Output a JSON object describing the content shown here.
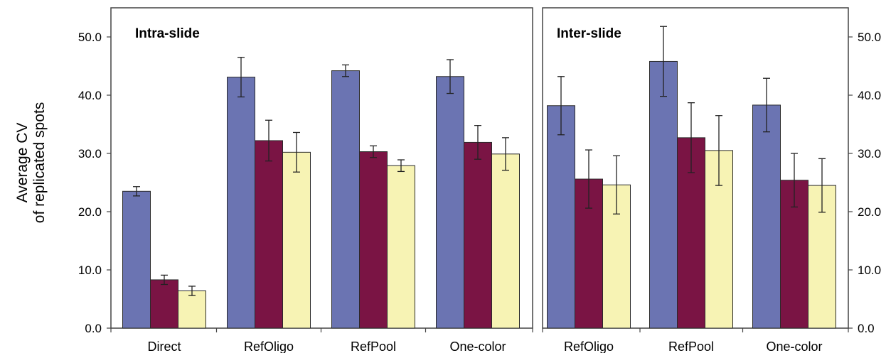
{
  "chart_data": {
    "type": "bar",
    "ylabel_line1": "Average CV",
    "ylabel_line2": "of replicated spots",
    "ylim": [
      0,
      55
    ],
    "yticks": [
      "0.0",
      "10.0",
      "20.0",
      "30.0",
      "40.0",
      "50.0"
    ],
    "ytick_values": [
      0,
      10,
      20,
      30,
      40,
      50
    ],
    "grid": false,
    "legend": "none",
    "colors": [
      "#6B74B2",
      "#7A1444",
      "#F7F3B4"
    ],
    "panels": [
      {
        "title": "Intra-slide",
        "categories": [
          "Direct",
          "RefOligo",
          "RefPool",
          "One-color"
        ],
        "series": [
          {
            "values": [
              23.5,
              43.1,
              44.2,
              43.2
            ],
            "errors": [
              0.8,
              3.4,
              1.0,
              2.9
            ]
          },
          {
            "values": [
              8.3,
              32.2,
              30.3,
              31.9
            ],
            "errors": [
              0.8,
              3.5,
              1.0,
              2.9
            ]
          },
          {
            "values": [
              6.4,
              30.2,
              27.9,
              29.9
            ],
            "errors": [
              0.8,
              3.4,
              1.0,
              2.8
            ]
          }
        ]
      },
      {
        "title": "Inter-slide",
        "categories": [
          "RefOligo",
          "RefPool",
          "One-color"
        ],
        "series": [
          {
            "values": [
              38.2,
              45.8,
              38.3
            ],
            "errors": [
              5.0,
              6.0,
              4.6
            ]
          },
          {
            "values": [
              25.6,
              32.7,
              25.4
            ],
            "errors": [
              5.0,
              6.0,
              4.6
            ]
          },
          {
            "values": [
              24.6,
              30.5,
              24.5
            ],
            "errors": [
              5.0,
              6.0,
              4.6
            ]
          }
        ]
      }
    ]
  }
}
